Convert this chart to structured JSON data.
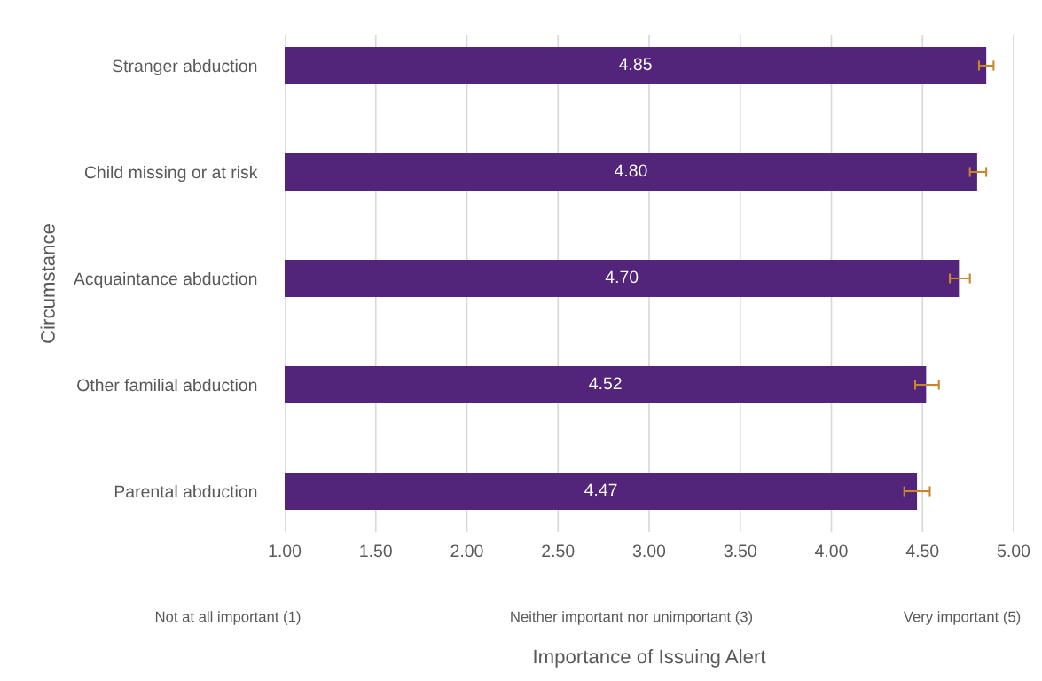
{
  "chart_data": {
    "type": "bar",
    "orientation": "horizontal",
    "xlabel": "Importance of Issuing Alert",
    "ylabel": "Circumstance",
    "categories": [
      "Stranger abduction",
      "Child missing or at risk",
      "Acquaintance abduction",
      "Other familial abduction",
      "Parental abduction"
    ],
    "values": [
      4.85,
      4.8,
      4.7,
      4.52,
      4.47
    ],
    "color": "#52247a",
    "errors": [
      [
        4.81,
        4.89
      ],
      [
        4.76,
        4.85
      ],
      [
        4.65,
        4.76
      ],
      [
        4.46,
        4.59
      ],
      [
        4.4,
        4.54
      ]
    ],
    "xlim": [
      1.0,
      5.0
    ],
    "xticks": [
      {
        "value": 1.0,
        "label": "1.00"
      },
      {
        "value": 1.5,
        "label": "1.50"
      },
      {
        "value": 2.0,
        "label": "2.00"
      },
      {
        "value": 2.5,
        "label": "2.50"
      },
      {
        "value": 3.0,
        "label": "3.00"
      },
      {
        "value": 3.5,
        "label": "3.50"
      },
      {
        "value": 4.0,
        "label": "4.00"
      },
      {
        "value": 4.5,
        "label": "4.50"
      },
      {
        "value": 5.0,
        "label": "5.00"
      }
    ],
    "grid": "x",
    "value_labels": [
      "4.85",
      "4.80",
      "4.70",
      "4.52",
      "4.47"
    ],
    "annotations": [
      "Not at all important (1)",
      "Neither important nor unimportant (3)",
      "Very important (5)"
    ]
  }
}
